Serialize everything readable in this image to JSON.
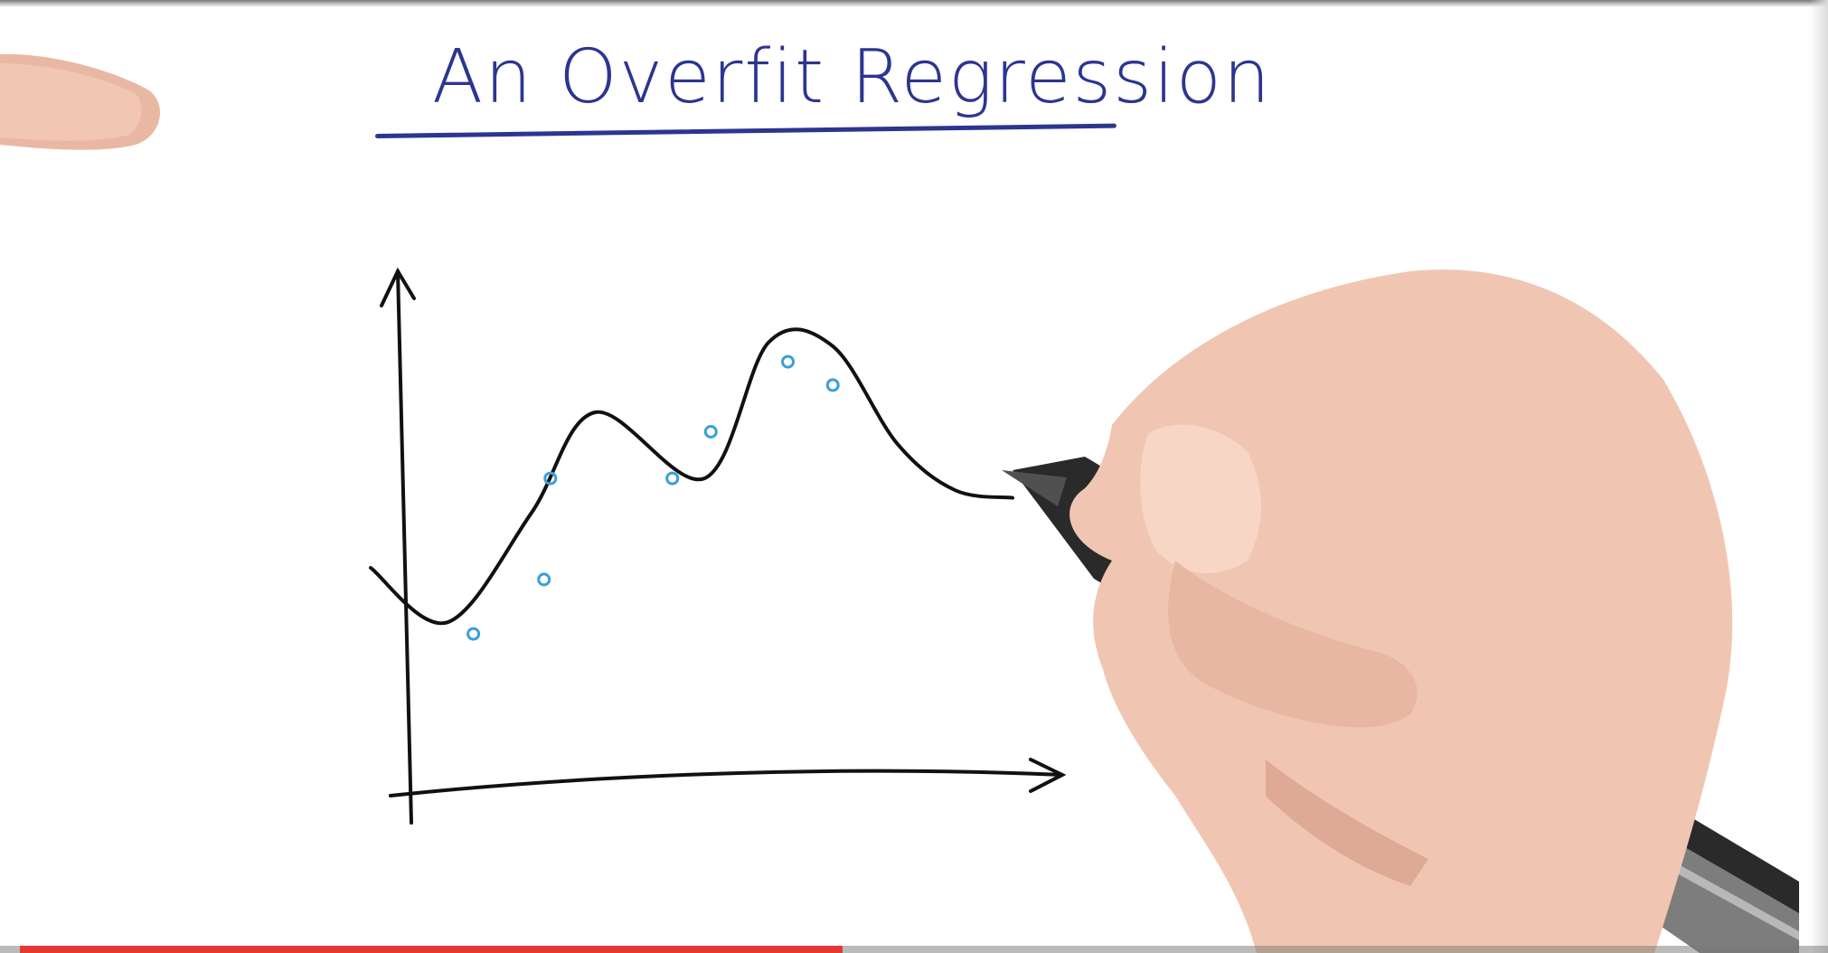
{
  "video": {
    "title_text": "An Overfit Regression",
    "progress_fraction": 0.455
  },
  "colors": {
    "title_ink": "#2c3590",
    "curve_ink": "#111111",
    "point_ink": "#3aa0d8",
    "progress_fill": "#e53935"
  },
  "chart_data": {
    "type": "line",
    "title": "An Overfit Regression",
    "xlabel": "",
    "ylabel": "",
    "grid": false,
    "series": [
      {
        "values_x": [
          0.0,
          0.12,
          0.25,
          0.35,
          0.52,
          0.62,
          0.72,
          0.82,
          0.91,
          1.0
        ],
        "values_y": [
          0.4,
          0.26,
          0.54,
          0.8,
          0.63,
          0.98,
          0.97,
          0.72,
          0.6,
          0.58
        ]
      }
    ],
    "points": {
      "x": [
        0.16,
        0.27,
        0.28,
        0.47,
        0.53,
        0.65,
        0.72
      ],
      "y": [
        0.23,
        0.37,
        0.63,
        0.63,
        0.75,
        0.93,
        0.87
      ]
    }
  }
}
